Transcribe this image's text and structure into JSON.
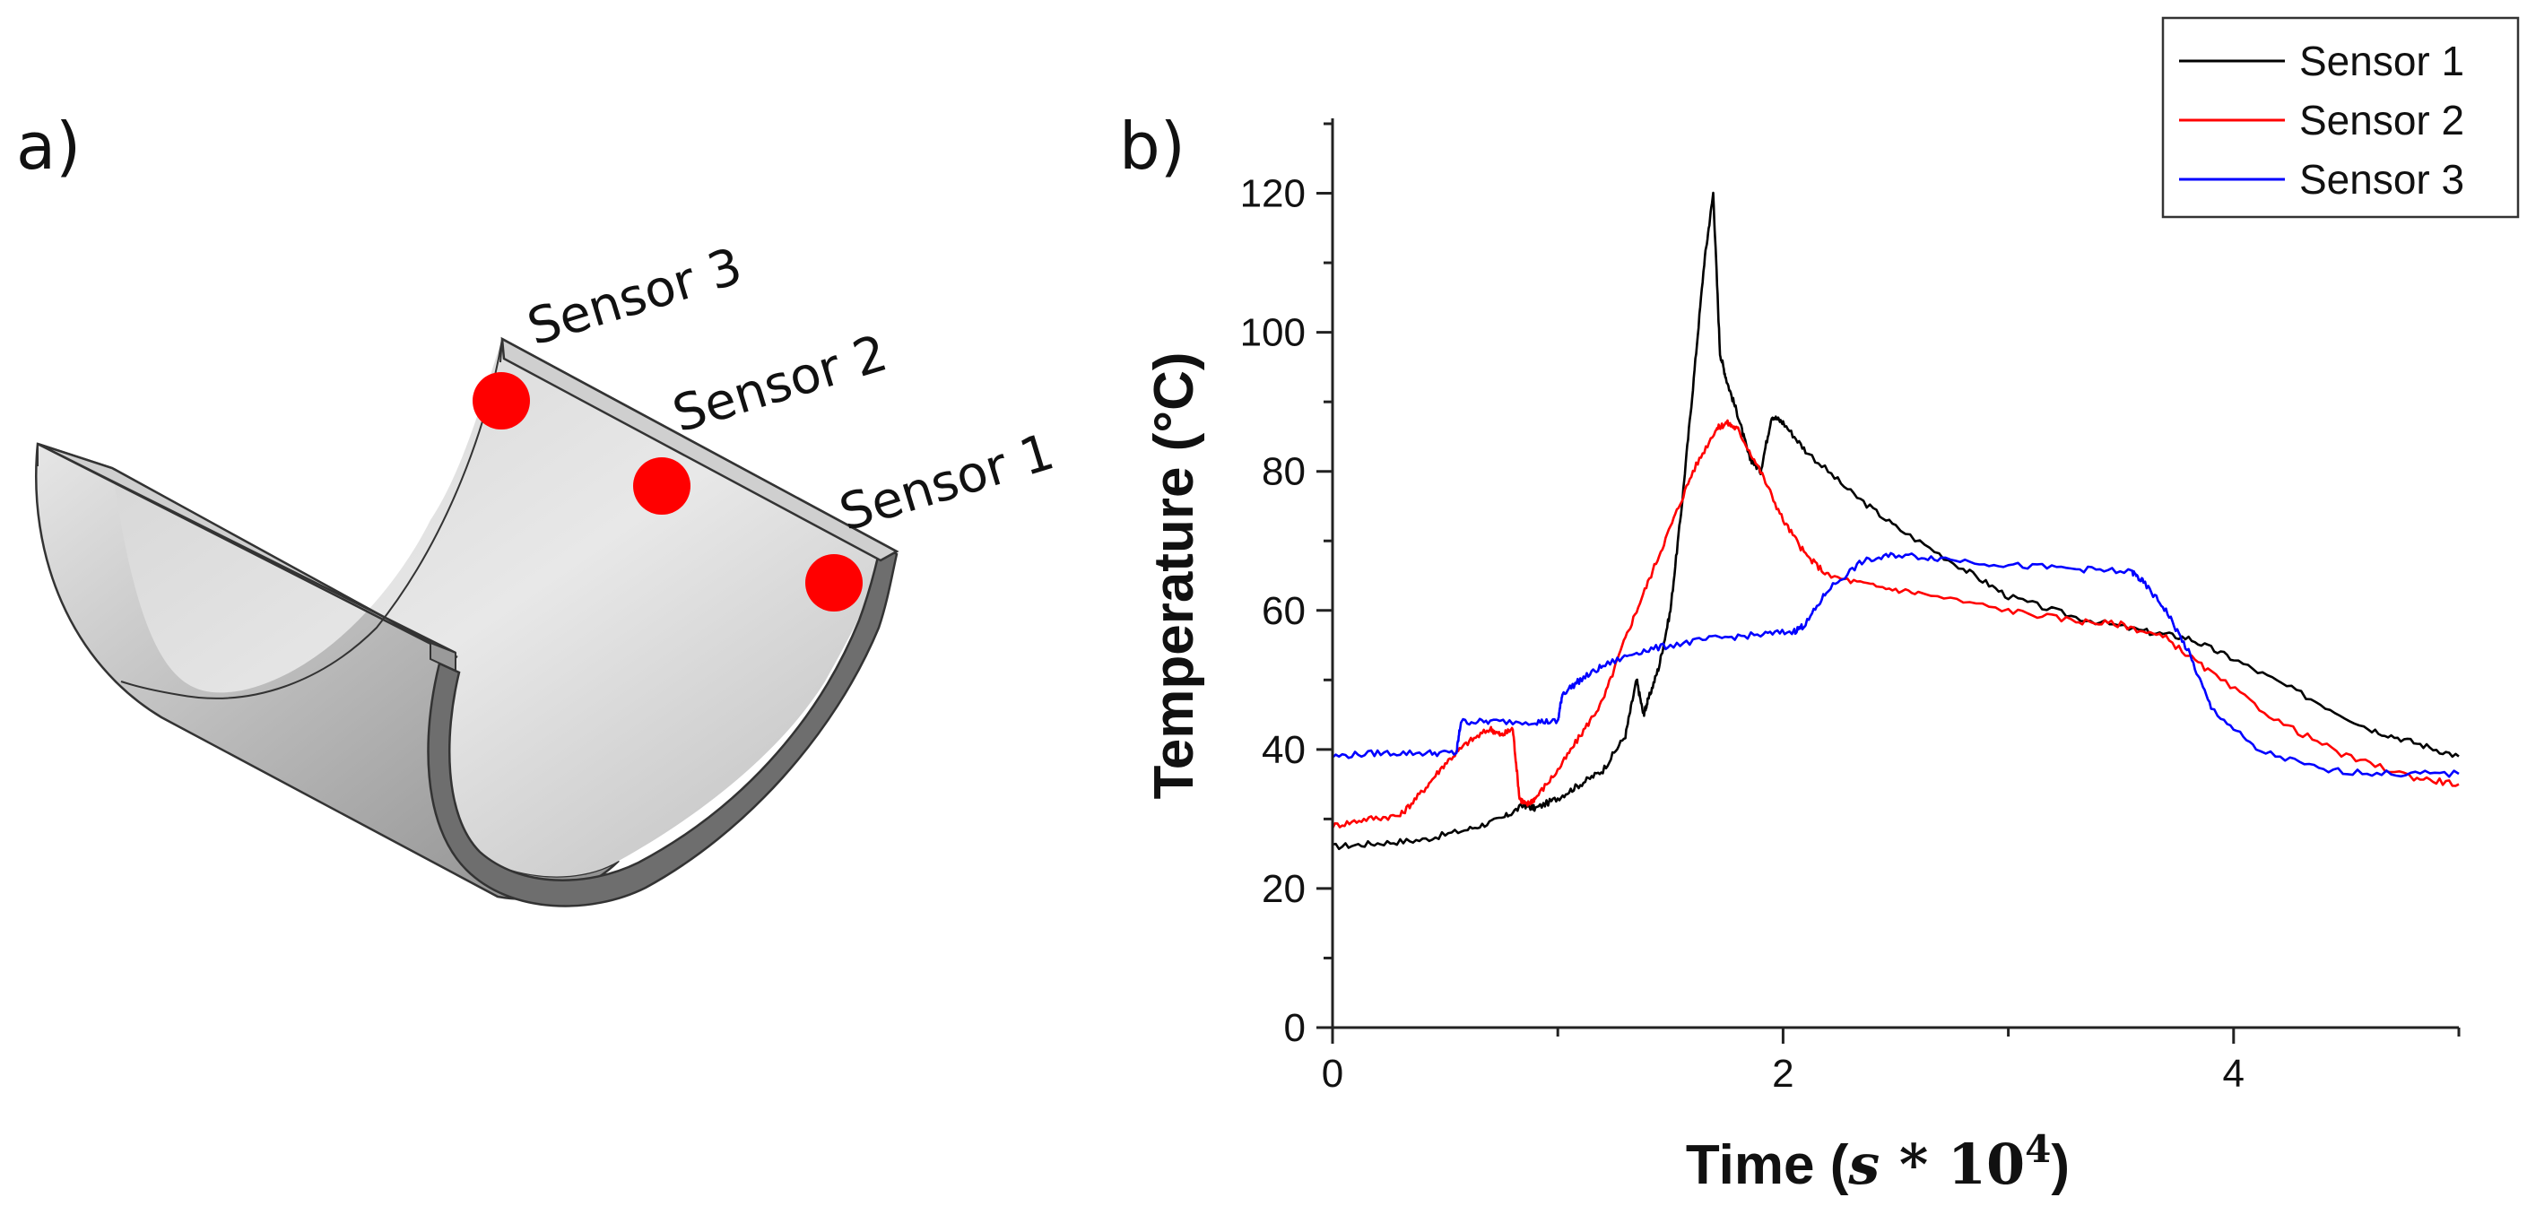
{
  "panel_a": {
    "label": "a)",
    "sensors": [
      {
        "label": "Sensor 3",
        "color": "#ff0000"
      },
      {
        "label": "Sensor 2",
        "color": "#ff0000"
      },
      {
        "label": "Sensor 1",
        "color": "#ff0000"
      }
    ]
  },
  "panel_b": {
    "label": "b)"
  },
  "chart_data": {
    "type": "line",
    "title": "",
    "xlabel_prefix": "Time (",
    "xlabel_math_s": "s",
    "xlabel_math_op": " * ",
    "xlabel_math_base": "10",
    "xlabel_math_exp": "4",
    "xlabel_suffix": ")",
    "ylabel": "Temperature (°C)",
    "xlim": [
      0,
      5
    ],
    "ylim": [
      0,
      130
    ],
    "xticks": [
      0,
      2,
      4
    ],
    "yticks": [
      0,
      20,
      40,
      60,
      80,
      100,
      120
    ],
    "grid": false,
    "legend_position": "top-right",
    "series": [
      {
        "name": "Sensor 1",
        "color": "#000000",
        "x": [
          0,
          0.2,
          0.4,
          0.6,
          0.75,
          0.85,
          0.9,
          1.0,
          1.1,
          1.2,
          1.3,
          1.35,
          1.38,
          1.4,
          1.45,
          1.5,
          1.55,
          1.6,
          1.65,
          1.69,
          1.72,
          1.75,
          1.8,
          1.85,
          1.9,
          1.95,
          2.0,
          2.1,
          2.3,
          2.5,
          2.8,
          3.0,
          3.3,
          3.6,
          3.8,
          4.0,
          4.3,
          4.6,
          4.8,
          5.0
        ],
        "y": [
          26,
          26.5,
          27,
          28.5,
          30,
          32,
          31.5,
          33,
          35,
          37,
          42,
          50,
          45,
          47,
          52,
          60,
          75,
          92,
          110,
          120,
          97,
          93,
          88,
          82,
          80,
          88,
          87,
          83,
          77,
          72,
          66,
          62,
          59,
          57,
          56,
          53,
          48,
          43,
          41,
          39
        ]
      },
      {
        "name": "Sensor 2",
        "color": "#ff0000",
        "x": [
          0,
          0.15,
          0.3,
          0.4,
          0.5,
          0.6,
          0.7,
          0.75,
          0.8,
          0.83,
          0.86,
          0.9,
          1.0,
          1.1,
          1.2,
          1.3,
          1.4,
          1.5,
          1.6,
          1.7,
          1.75,
          1.8,
          1.9,
          2.0,
          2.1,
          2.2,
          2.4,
          2.6,
          3.0,
          3.3,
          3.5,
          3.7,
          3.9,
          4.2,
          4.5,
          4.8,
          5.0
        ],
        "y": [
          29,
          30,
          30.5,
          34,
          38,
          41,
          43,
          42,
          43,
          33,
          32,
          33,
          37,
          42,
          47,
          56,
          64,
          72,
          80,
          86,
          87,
          86,
          80,
          73,
          68,
          65,
          63.5,
          62.5,
          60,
          58.5,
          58,
          56,
          51,
          44,
          39,
          36,
          35
        ]
      },
      {
        "name": "Sensor 3",
        "color": "#0000ff",
        "x": [
          0,
          0.2,
          0.4,
          0.55,
          0.57,
          0.7,
          0.9,
          1.0,
          1.02,
          1.1,
          1.2,
          1.35,
          1.5,
          1.7,
          1.9,
          2.05,
          2.1,
          2.2,
          2.35,
          2.5,
          2.7,
          3.0,
          3.3,
          3.55,
          3.6,
          3.7,
          3.8,
          3.9,
          4.1,
          4.4,
          4.7,
          5.0
        ],
        "y": [
          39,
          39.5,
          39.5,
          39.5,
          44,
          44,
          44,
          44,
          48,
          50,
          52,
          54,
          55,
          56,
          56.5,
          57,
          58,
          63,
          67,
          68,
          67.5,
          66.5,
          66,
          65.5,
          64,
          60,
          54,
          46,
          40,
          37,
          36.5,
          36.5
        ]
      }
    ]
  }
}
